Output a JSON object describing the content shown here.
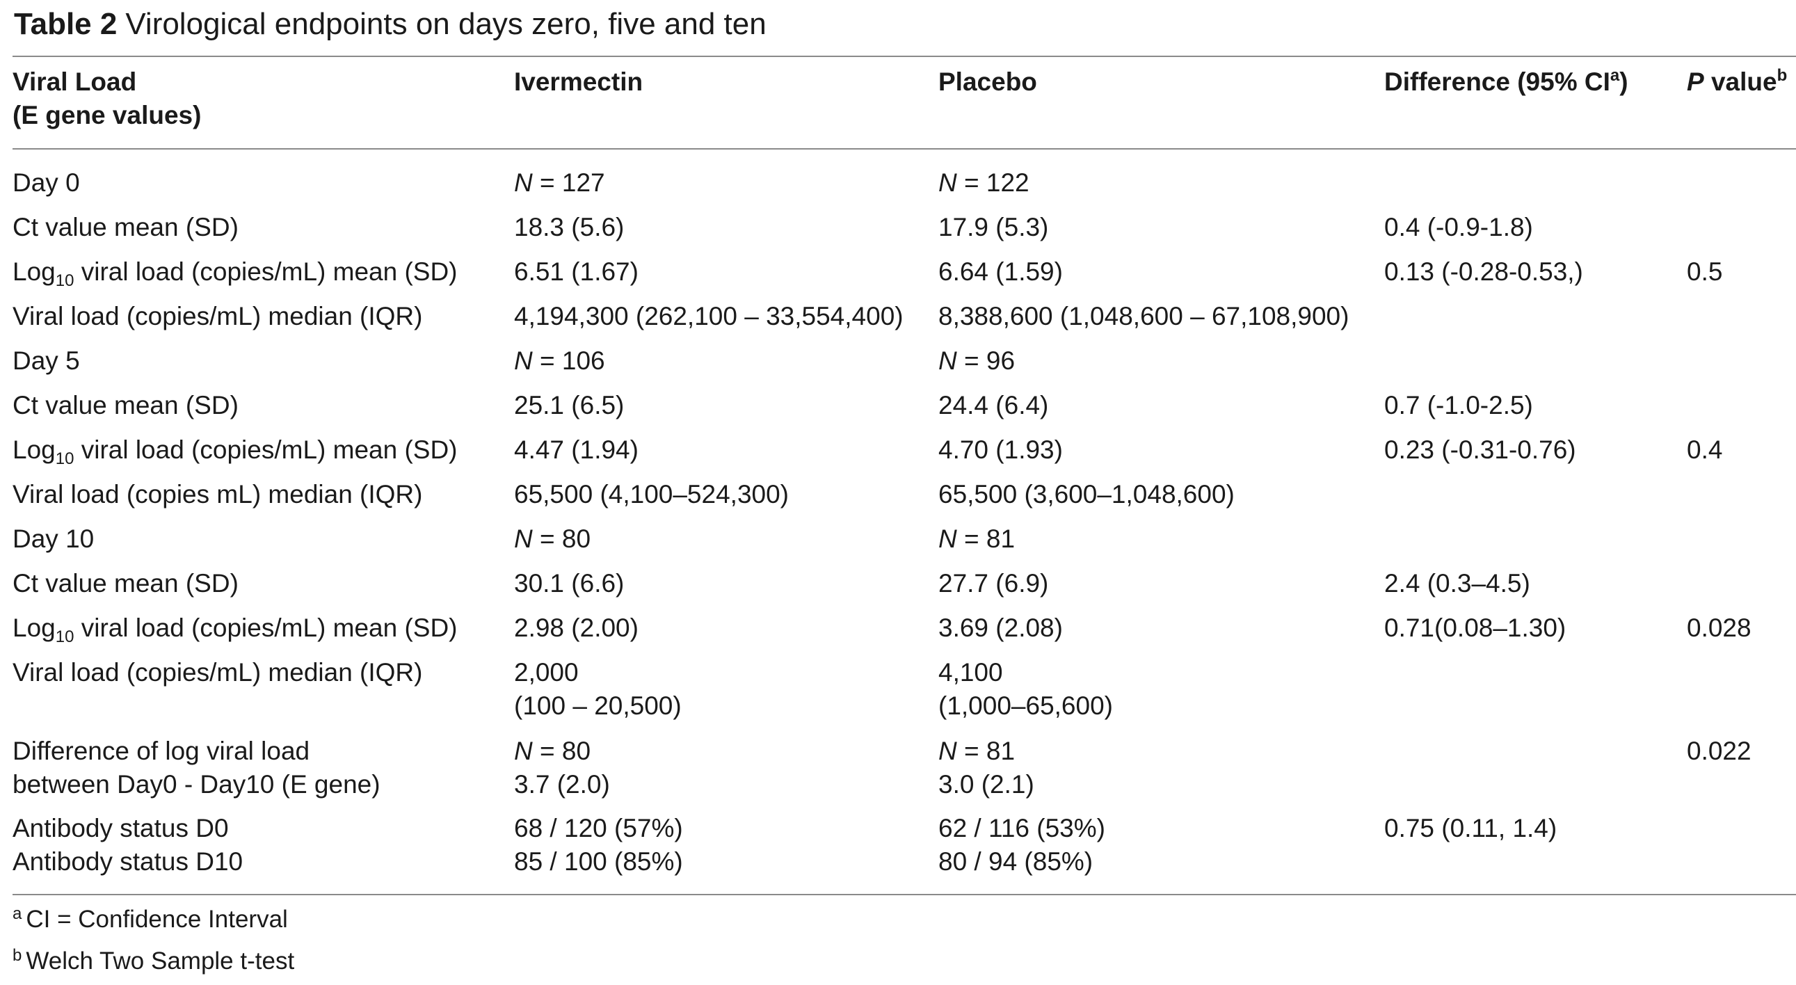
{
  "title": {
    "label": "Table 2",
    "text": "Virological endpoints on days zero, five and ten"
  },
  "header": {
    "col1_line1": "Viral Load",
    "col1_line2": "(E gene values)",
    "col2": "Ivermectin",
    "col3": "Placebo",
    "col4": "Difference (95% CI",
    "col4_sup": "a",
    "col4_close": ")",
    "col5_italic": "P",
    "col5": " value",
    "col5_sup": "b"
  },
  "rows": {
    "d0": {
      "label": "Day 0",
      "n_ivm_prefix": "N",
      "n_ivm": " = 127",
      "n_pbo_prefix": "N",
      "n_pbo": " = 122",
      "ct_label": "Ct value mean (SD)",
      "ct_ivm": "18.3 (5.6)",
      "ct_pbo": "17.9 (5.3)",
      "ct_diff": "0.4 (-0.9-1.8)",
      "log_label_a": "Log",
      "log_label_sub": "10",
      "log_label_b": " viral load (copies/mL) mean (SD)",
      "log_ivm": "6.51 (1.67)",
      "log_pbo": "6.64 (1.59)",
      "log_diff": "0.13 (-0.28-0.53,)",
      "log_p": "0.5",
      "med_label": "Viral load (copies/mL) median (IQR)",
      "med_ivm": "4,194,300 (262,100 – 33,554,400)",
      "med_pbo": "8,388,600 (1,048,600 – 67,108,900)"
    },
    "d5": {
      "label": "Day 5",
      "n_ivm_prefix": "N",
      "n_ivm": " = 106",
      "n_pbo_prefix": "N",
      "n_pbo": " = 96",
      "ct_label": "Ct value mean (SD)",
      "ct_ivm": "25.1 (6.5)",
      "ct_pbo": "24.4 (6.4)",
      "ct_diff": "0.7 (-1.0-2.5)",
      "log_label_a": "Log",
      "log_label_sub": "10",
      "log_label_b": " viral load (copies/mL) mean (SD)",
      "log_ivm": "4.47 (1.94)",
      "log_pbo": "4.70 (1.93)",
      "log_diff": "0.23 (-0.31-0.76)",
      "log_p": "0.4",
      "med_label": "Viral load (copies mL) median (IQR)",
      "med_ivm": "65,500 (4,100–524,300)",
      "med_pbo": "65,500 (3,600–1,048,600)"
    },
    "d10": {
      "label": "Day 10",
      "n_ivm_prefix": "N",
      "n_ivm": " = 80",
      "n_pbo_prefix": "N",
      "n_pbo": " = 81",
      "ct_label": "Ct value mean (SD)",
      "ct_ivm": "30.1 (6.6)",
      "ct_pbo": "27.7 (6.9)",
      "ct_diff": "2.4 (0.3–4.5)",
      "log_label_a": "Log",
      "log_label_sub": "10",
      "log_label_b": " viral load (copies/mL) mean (SD)",
      "log_ivm": "2.98 (2.00)",
      "log_pbo": "3.69 (2.08)",
      "log_diff": "0.71(0.08–1.30)",
      "log_p": "0.028",
      "med_label": "Viral load (copies/mL) median (IQR)",
      "med_ivm_1": "2,000",
      "med_ivm_2": "(100 – 20,500)",
      "med_pbo_1": "4,100",
      "med_pbo_2": "(1,000–65,600)"
    },
    "diff": {
      "label_1": "Difference of log viral load",
      "label_2": "between Day0 - Day10 (E gene)",
      "ivm_n_prefix": "N",
      "ivm_n": " = 80",
      "ivm_val": "3.7 (2.0)",
      "pbo_n_prefix": "N",
      "pbo_n": " = 81",
      "pbo_val": "3.0 (2.1)",
      "p": "0.022"
    },
    "ab": {
      "label_1": "Antibody status D0",
      "label_2": "Antibody status D10",
      "ivm_1": "68 / 120 (57%)",
      "ivm_2": "85 / 100 (85%)",
      "pbo_1": "62 / 116 (53%)",
      "pbo_2": "80 / 94 (85%)",
      "diff": "0.75 (0.11, 1.4)"
    }
  },
  "footnotes": {
    "a_sup": "a",
    "a_text": "CI = Confidence Interval",
    "b_sup": "b",
    "b_text": "Welch Two Sample t-test"
  }
}
